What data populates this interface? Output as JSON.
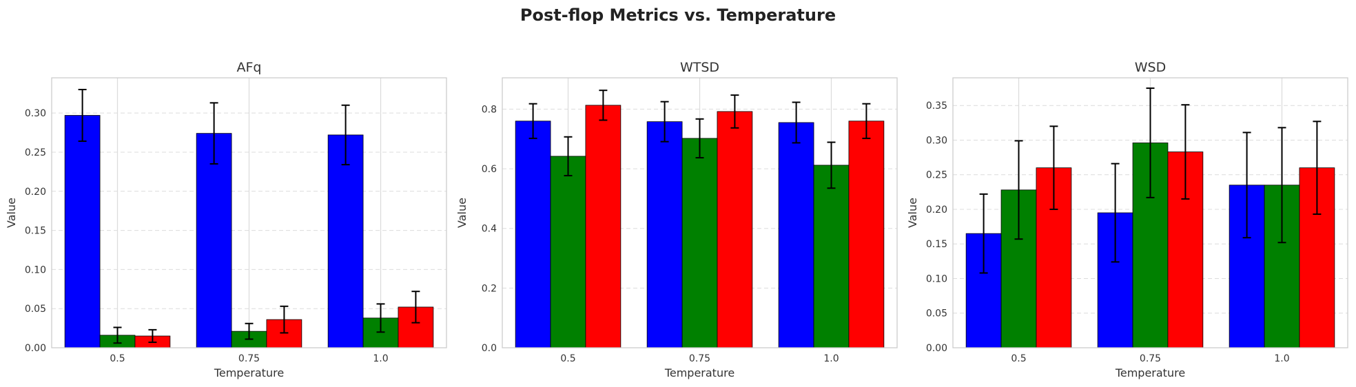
{
  "title": "Post-flop Metrics vs. Temperature",
  "chart_data": [
    {
      "type": "bar",
      "title": "AFq",
      "xlabel": "Temperature",
      "ylabel": "Value",
      "categories": [
        "0.5",
        "0.75",
        "1.0"
      ],
      "ylim": [
        0,
        0.345
      ],
      "yticks": [
        "0.00",
        "0.05",
        "0.10",
        "0.15",
        "0.20",
        "0.25",
        "0.30"
      ],
      "grid": true,
      "series": [
        {
          "color": "#0000ff",
          "values": [
            0.297,
            0.274,
            0.272
          ],
          "errors": [
            0.033,
            0.039,
            0.038
          ]
        },
        {
          "color": "#008000",
          "values": [
            0.016,
            0.021,
            0.038
          ],
          "errors": [
            0.01,
            0.01,
            0.018
          ]
        },
        {
          "color": "#ff0000",
          "values": [
            0.015,
            0.036,
            0.052
          ],
          "errors": [
            0.008,
            0.017,
            0.02
          ]
        }
      ]
    },
    {
      "type": "bar",
      "title": "WTSD",
      "xlabel": "Temperature",
      "ylabel": "Value",
      "categories": [
        "0.5",
        "0.75",
        "1.0"
      ],
      "ylim": [
        0,
        0.905
      ],
      "yticks": [
        "0.0",
        "0.2",
        "0.4",
        "0.6",
        "0.8"
      ],
      "grid": true,
      "series": [
        {
          "color": "#0000ff",
          "values": [
            0.76,
            0.758,
            0.755
          ],
          "errors": [
            0.058,
            0.067,
            0.068
          ]
        },
        {
          "color": "#008000",
          "values": [
            0.642,
            0.702,
            0.612
          ],
          "errors": [
            0.065,
            0.065,
            0.077
          ]
        },
        {
          "color": "#ff0000",
          "values": [
            0.813,
            0.792,
            0.76
          ],
          "errors": [
            0.05,
            0.055,
            0.058
          ]
        }
      ]
    },
    {
      "type": "bar",
      "title": "WSD",
      "xlabel": "Temperature",
      "ylabel": "Value",
      "categories": [
        "0.5",
        "0.75",
        "1.0"
      ],
      "ylim": [
        0,
        0.39
      ],
      "yticks": [
        "0.00",
        "0.05",
        "0.10",
        "0.15",
        "0.20",
        "0.25",
        "0.30",
        "0.35"
      ],
      "grid": true,
      "series": [
        {
          "color": "#0000ff",
          "values": [
            0.165,
            0.195,
            0.235
          ],
          "errors": [
            0.057,
            0.071,
            0.076
          ]
        },
        {
          "color": "#008000",
          "values": [
            0.228,
            0.296,
            0.235
          ],
          "errors": [
            0.071,
            0.079,
            0.083
          ]
        },
        {
          "color": "#ff0000",
          "values": [
            0.26,
            0.283,
            0.26
          ],
          "errors": [
            0.06,
            0.068,
            0.067
          ]
        }
      ]
    }
  ]
}
